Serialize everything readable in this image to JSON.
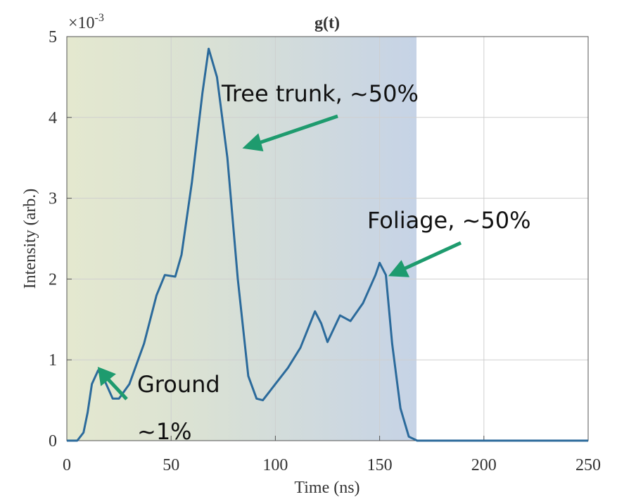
{
  "chart_data": {
    "type": "line",
    "title": "g(t)",
    "x_label": "Time (ns)",
    "y_label": "Intensity (arb.)",
    "y_multiplier": {
      "base": "×10",
      "exponent": "-3"
    },
    "x": [
      0,
      5,
      8,
      10,
      12,
      15,
      18,
      22,
      25,
      30,
      37,
      43,
      47,
      52,
      55,
      60,
      65,
      68,
      72,
      77,
      82,
      87,
      91,
      94,
      100,
      106,
      112,
      119,
      122,
      125,
      131,
      136,
      142,
      148,
      150,
      153,
      156,
      160,
      164,
      168,
      250
    ],
    "series": [
      {
        "name": "g(t)",
        "color": "#2b6a9b",
        "values": [
          0,
          0,
          0.1,
          0.35,
          0.7,
          0.87,
          0.75,
          0.52,
          0.52,
          0.7,
          1.2,
          1.8,
          2.05,
          2.03,
          2.3,
          3.2,
          4.3,
          4.85,
          4.5,
          3.5,
          2.0,
          0.8,
          0.52,
          0.5,
          0.7,
          0.9,
          1.15,
          1.6,
          1.45,
          1.22,
          1.55,
          1.48,
          1.7,
          2.05,
          2.2,
          2.05,
          1.2,
          0.4,
          0.05,
          0,
          0
        ]
      }
    ],
    "xlim": [
      0,
      250
    ],
    "xticks": [
      0,
      50,
      100,
      150,
      200,
      250
    ],
    "ylim": [
      0,
      5
    ],
    "yticks": [
      0,
      1,
      2,
      3,
      4,
      5
    ],
    "grid": true,
    "annotations": [
      "Tree trunk, ~50%",
      "Foliage, ~50%",
      "Ground",
      "~1%"
    ]
  }
}
